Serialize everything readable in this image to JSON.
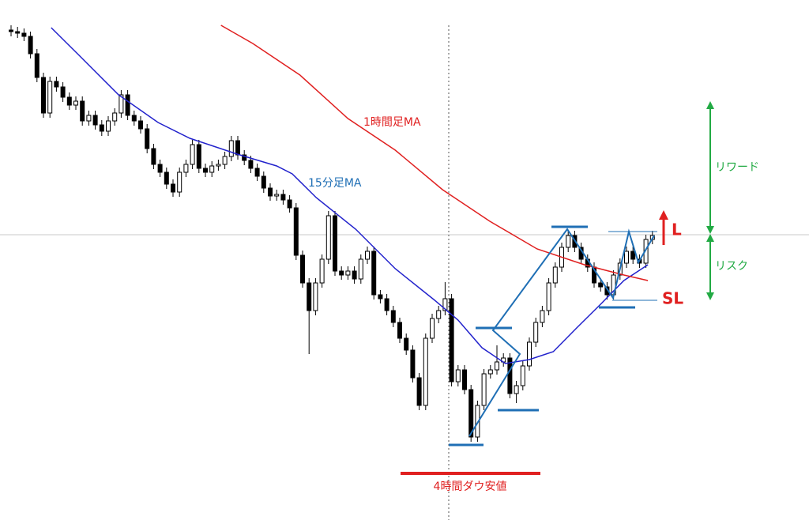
{
  "chart_data": {
    "type": "candlestick",
    "candle_color": "#000000",
    "candles": {
      "open": [
        620,
        618,
        616,
        612,
        590,
        560,
        515,
        555,
        548,
        535,
        525,
        530,
        505,
        512,
        500,
        492,
        505,
        515,
        538,
        512,
        505,
        495,
        470,
        450,
        440,
        425,
        415,
        440,
        450,
        475,
        445,
        440,
        448,
        450,
        460,
        480,
        462,
        455,
        445,
        435,
        420,
        410,
        412,
        405,
        395,
        335,
        300,
        265,
        300,
        330,
        385,
        315,
        310,
        315,
        305,
        330,
        340,
        285,
        280,
        265,
        250,
        230,
        215,
        180,
        145,
        230,
        255,
        265,
        280,
        175,
        190,
        165,
        105,
        145,
        185,
        190,
        200,
        205,
        160,
        170,
        195,
        225,
        250,
        265,
        300,
        320,
        345,
        360,
        345,
        330,
        320,
        300,
        295,
        285,
        310,
        325,
        340,
        330,
        325,
        355
      ],
      "high": [
        626,
        624,
        622,
        618,
        596,
        566,
        561,
        561,
        554,
        541,
        536,
        536,
        518,
        518,
        506,
        511,
        521,
        544,
        544,
        518,
        511,
        501,
        476,
        456,
        446,
        431,
        446,
        456,
        481,
        481,
        451,
        454,
        456,
        466,
        486,
        486,
        468,
        461,
        451,
        441,
        426,
        418,
        418,
        411,
        401,
        341,
        306,
        306,
        336,
        391,
        391,
        321,
        321,
        321,
        336,
        346,
        346,
        291,
        286,
        271,
        256,
        236,
        221,
        186,
        236,
        261,
        271,
        301,
        286,
        196,
        196,
        171,
        151,
        191,
        196,
        221,
        211,
        211,
        176,
        201,
        231,
        256,
        271,
        306,
        326,
        351,
        366,
        366,
        351,
        336,
        326,
        306,
        301,
        316,
        331,
        346,
        346,
        336,
        361,
        366
      ],
      "low": [
        612,
        610,
        606,
        584,
        554,
        509,
        509,
        542,
        529,
        519,
        519,
        499,
        499,
        494,
        486,
        486,
        499,
        509,
        506,
        499,
        489,
        464,
        444,
        434,
        419,
        409,
        409,
        434,
        444,
        439,
        434,
        434,
        442,
        444,
        454,
        456,
        449,
        439,
        429,
        414,
        404,
        404,
        399,
        389,
        329,
        294,
        210,
        259,
        294,
        324,
        309,
        304,
        304,
        299,
        299,
        324,
        279,
        274,
        259,
        244,
        224,
        209,
        174,
        139,
        139,
        224,
        249,
        259,
        169,
        169,
        159,
        99,
        99,
        139,
        179,
        184,
        194,
        154,
        148,
        164,
        189,
        219,
        244,
        259,
        294,
        314,
        339,
        339,
        324,
        314,
        294,
        289,
        279,
        279,
        304,
        319,
        324,
        319,
        319,
        349
      ],
      "close": [
        618,
        616,
        612,
        590,
        560,
        515,
        555,
        548,
        535,
        525,
        530,
        505,
        512,
        500,
        492,
        505,
        515,
        538,
        512,
        505,
        495,
        470,
        450,
        440,
        425,
        415,
        440,
        450,
        475,
        445,
        440,
        448,
        450,
        460,
        480,
        462,
        455,
        445,
        435,
        420,
        410,
        412,
        405,
        395,
        335,
        300,
        265,
        300,
        330,
        385,
        315,
        310,
        315,
        305,
        330,
        340,
        285,
        280,
        265,
        250,
        230,
        215,
        180,
        145,
        230,
        255,
        265,
        280,
        175,
        190,
        165,
        105,
        145,
        185,
        190,
        200,
        205,
        160,
        170,
        195,
        225,
        250,
        265,
        300,
        320,
        345,
        360,
        345,
        330,
        320,
        300,
        295,
        285,
        310,
        325,
        340,
        330,
        325,
        355,
        360
      ]
    },
    "series": [
      {
        "name": "15分足MA",
        "color": "#2222cc",
        "x": [
          6.2,
          10.5,
          16.6,
          22.7,
          27.6,
          34.9,
          41,
          43.4,
          47.1,
          53.2,
          59.3,
          65.4,
          69,
          72.7,
          76.3,
          80,
          83.7,
          87.3,
          91,
          94.6,
          98.3
        ],
        "values": [
          623,
          588,
          538,
          503,
          483,
          463,
          448,
          438,
          408,
          368,
          318,
          278,
          253,
          218,
          198,
          203,
          213,
          243,
          273,
          303,
          323
        ]
      },
      {
        "name": "1時間足MA",
        "color": "#e02020",
        "x": [
          32.4,
          37.3,
          44.6,
          52,
          59.3,
          66.6,
          73.9,
          81.2,
          88.5,
          94.6,
          98.3
        ],
        "values": [
          626,
          603,
          563,
          508,
          468,
          418,
          378,
          343,
          323,
          310,
          303
        ]
      }
    ],
    "annotations": {
      "low_label": "4時間ダウ安値",
      "reward": "リワード",
      "risk": "リスク",
      "long": "L",
      "stop": "SL"
    }
  }
}
